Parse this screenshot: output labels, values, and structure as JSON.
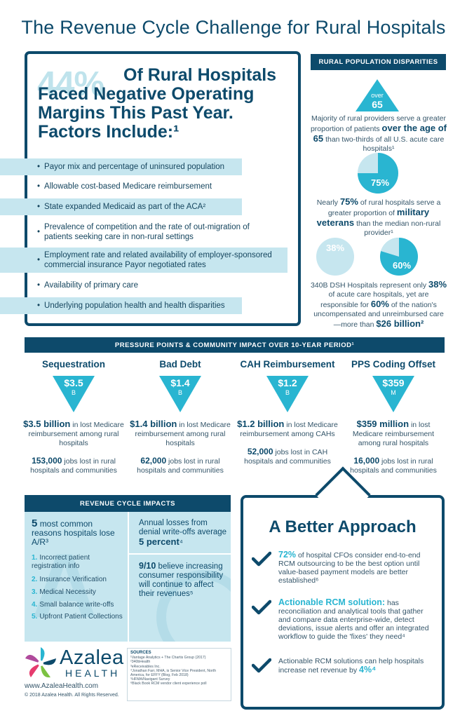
{
  "title": "The Revenue Cycle Challenge for Rural Hospitals",
  "factors": {
    "percent": "44%",
    "headline": "Of Rural Hospitals Faced Negative Operating Margins This Past Year. Factors Include:¹",
    "items": [
      "Payor mix and percentage of uninsured population",
      "Allowable cost-based Medicare reimbursement",
      "State expanded Medicaid as part of the ACA²",
      "Prevalence of competition and the rate of out-migration of patients seeking care in non-rural settings",
      "Employment rate and related availability of employer-sponsored commercial insurance Payor negotiated rates",
      "Availability of primary care",
      "Underlying population health and health disparities"
    ]
  },
  "rural_population": {
    "tag": "RURAL POPULATION DISPARITIES",
    "age_top": "over",
    "age_num": "65",
    "age_pre": "Majority of rural providers serve a greater proportion of patients",
    "age_bold": "over the age of 65",
    "age_post": "than two-thirds of all U.S. acute care hospitals¹",
    "vet_pct": "75%",
    "vet_pre": "Nearly",
    "vet_bold_pct": "75%",
    "vet_mid": "of rural hospitals serve a greater proportion of",
    "vet_bold": "military veterans",
    "vet_post": "than the median non-rural provider¹",
    "dsh_pct1": "38%",
    "dsh_pct2": "60%",
    "dsh_pre": "340B DSH Hospitals represent only",
    "dsh_b1": "38%",
    "dsh_mid1": "of acute care hospitals, yet are responsible for",
    "dsh_b2": "60%",
    "dsh_mid2": "of the nation's uncompensated and unreimbursed care—more than",
    "dsh_b3": "$26 billion²",
    "colors": {
      "navy": "#0d4a6b",
      "teal": "#29b5d1",
      "light": "#c6e6ef"
    }
  },
  "pressure": {
    "bar": "PRESSURE POINTS & COMMUNITY IMPACT OVER 10-YEAR PERIOD¹",
    "cols": [
      {
        "title": "Sequestration",
        "value": "$3.5",
        "unit": "B",
        "bold": "$3.5 billion",
        "desc": "in lost Medicare reimbursement among rural hospitals",
        "jobs_bold": "153,000",
        "jobs": "jobs lost in rural hospitals and communities"
      },
      {
        "title": "Bad Debt",
        "value": "$1.4",
        "unit": "B",
        "bold": "$1.4 billion",
        "desc": "in lost Medicare reimbursement among rural hospitals",
        "jobs_bold": "62,000",
        "jobs": "jobs lost in rural hospitals and communities"
      },
      {
        "title": "CAH Reimbursement",
        "value": "$1.2",
        "unit": "B",
        "bold": "$1.2 billion",
        "desc": "in lost Medicare reimbursement among CAHs",
        "jobs_bold": "52,000",
        "jobs": "jobs lost in CAH hospitals and communities"
      },
      {
        "title": "PPS Coding Offset",
        "value": "$359",
        "unit": "M",
        "bold": "$359 million",
        "desc": "in lost Medicare reimbursement among rural hospitals",
        "jobs_bold": "16,000",
        "jobs": "jobs lost in rural hospitals and communities"
      }
    ]
  },
  "rci": {
    "head": "REVENUE CYCLE IMPACTS",
    "lead_bold": "5",
    "lead": "most common reasons hospitals lose A/R³",
    "items": [
      {
        "n": "1.",
        "t": "Incorrect patient registration info"
      },
      {
        "n": "2.",
        "t": "Insurance Verification"
      },
      {
        "n": "3.",
        "t": "Medical Necessity"
      },
      {
        "n": "4.",
        "t": "Small balance write-offs"
      },
      {
        "n": "5.",
        "t": "Upfront Patient Collections"
      }
    ],
    "annual_pre": "Annual losses from denial write-offs average",
    "annual_bold": "5 percent",
    "annual_sup": "⁴",
    "ninety_bold": "9/10",
    "ninety": "believe increasing consumer responsibility will continue to affect their revenues⁵"
  },
  "better": {
    "title": "A Better Approach",
    "items": [
      {
        "bold": "72%",
        "text": "of hospital CFOs consider end-to-end RCM outsourcing to be the best option until value-based payment models are better established⁶"
      },
      {
        "bold": "Actionable RCM solution:",
        "text": "has reconciliation and analytical tools that gather and compare data enterprise-wide, detect deviations, issue alerts and offer an integrated workflow to guide the 'fixes' they need⁴"
      },
      {
        "bold": "",
        "text": "Actionable RCM solutions can help hospitals increase net revenue by",
        "tail": "4%⁴"
      }
    ]
  },
  "footer": {
    "logo_word": "Azalea",
    "logo_health": "HEALTH",
    "site": "www.AzaleaHealth.com",
    "copyright": "© 2018 Azalea Health. All Rights Reserved.",
    "sources_head": "SOURCES",
    "sources": [
      "¹Vantage Analytics + The Chartis Group (2017)",
      "²340bHealth",
      "³eReceivables Inc.",
      "⁴Jonathan Farr, MHA, is Senior Vice President, North America, for EFFY (Blog, Feb 2018)",
      "⁵HFMA/Navigant Survey",
      "⁶Black Book RCM vendor client experience poll"
    ]
  }
}
